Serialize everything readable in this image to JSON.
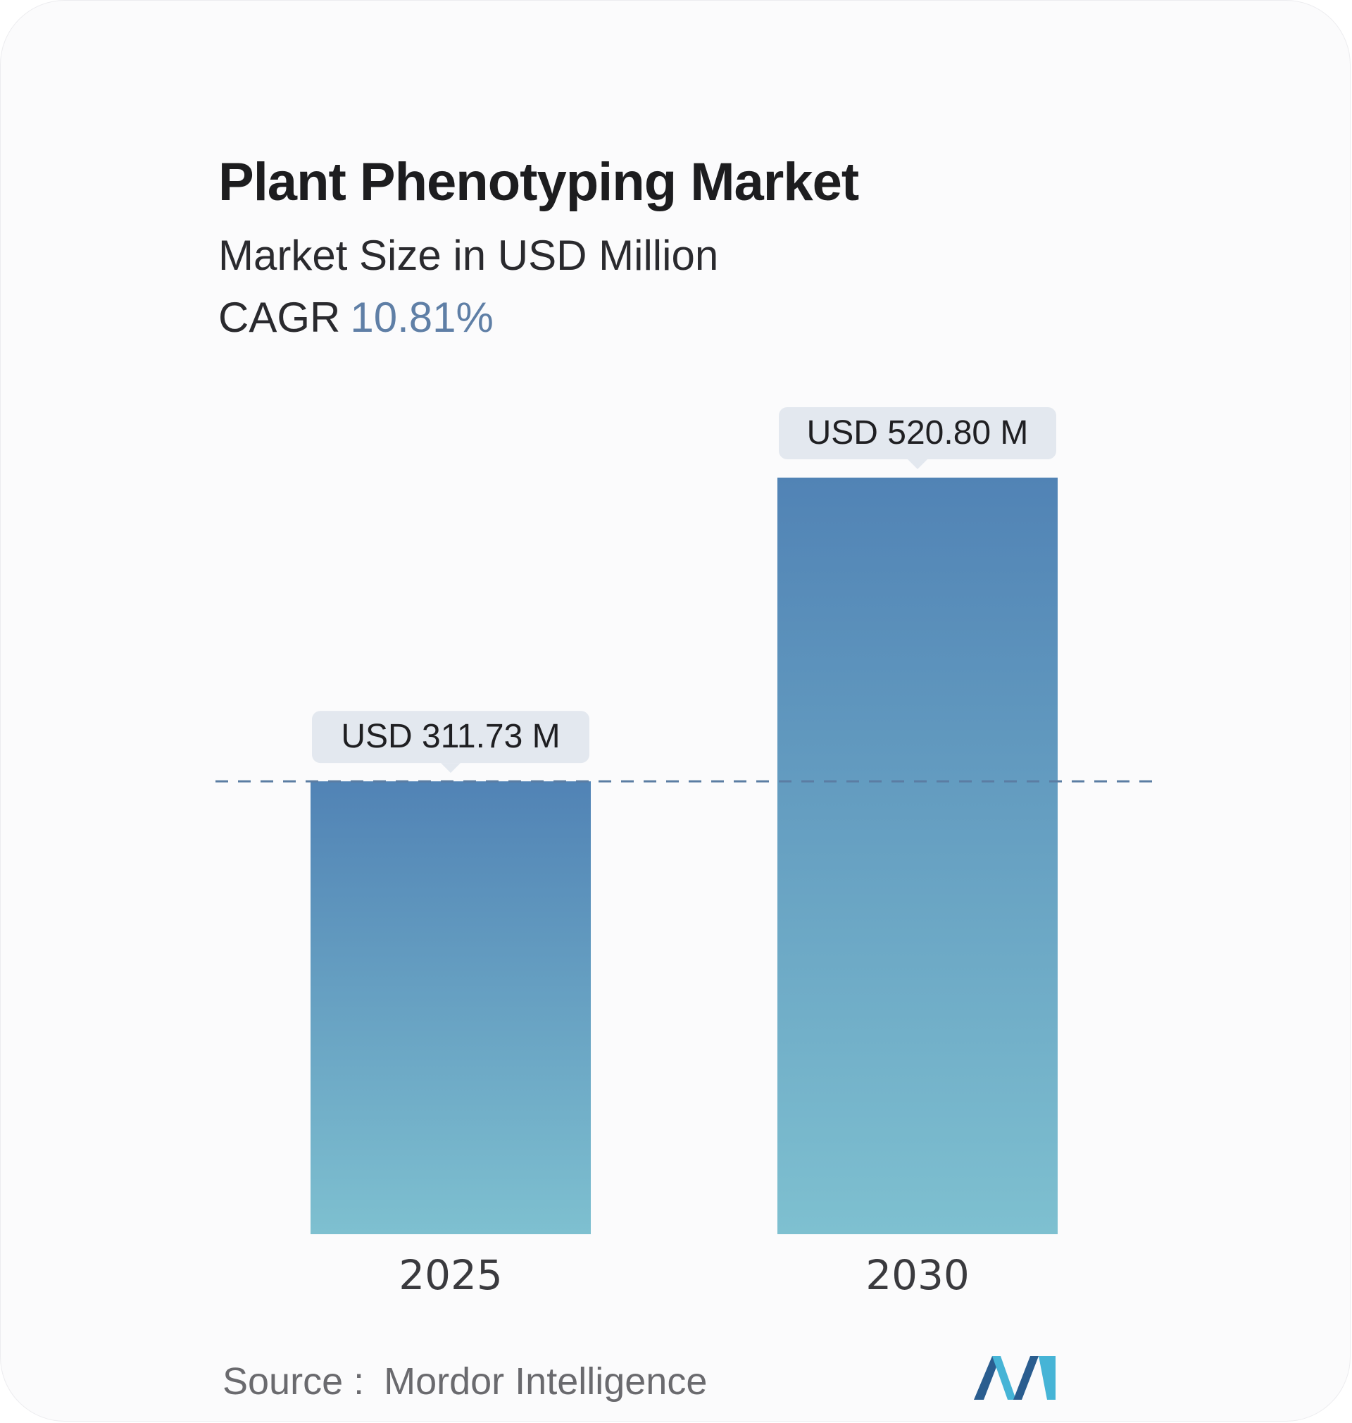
{
  "header": {
    "title": "Plant Phenotyping Market",
    "subtitle": "Market Size in USD Million",
    "cagr_label": "CAGR",
    "cagr_value": "10.81%"
  },
  "chart_data": {
    "type": "bar",
    "categories": [
      "2025",
      "2030"
    ],
    "values": [
      311.73,
      520.8
    ],
    "value_labels": [
      "USD 311.73 M",
      "USD 520.80 M"
    ],
    "ylim": [
      0,
      520.8
    ],
    "reference_line": 311.73,
    "grid": false,
    "colors": {
      "bar_top": "#5183b5",
      "bar_bottom": "#7ec0d0",
      "label_bg": "#e3e8ef",
      "reference_line": "#5b7da3"
    }
  },
  "footer": {
    "source_label": "Source :",
    "source_value": "Mordor Intelligence"
  },
  "logo": {
    "icon": "mordor-intelligence-logo",
    "colors": [
      "#2a5d8f",
      "#46b4d6"
    ]
  }
}
